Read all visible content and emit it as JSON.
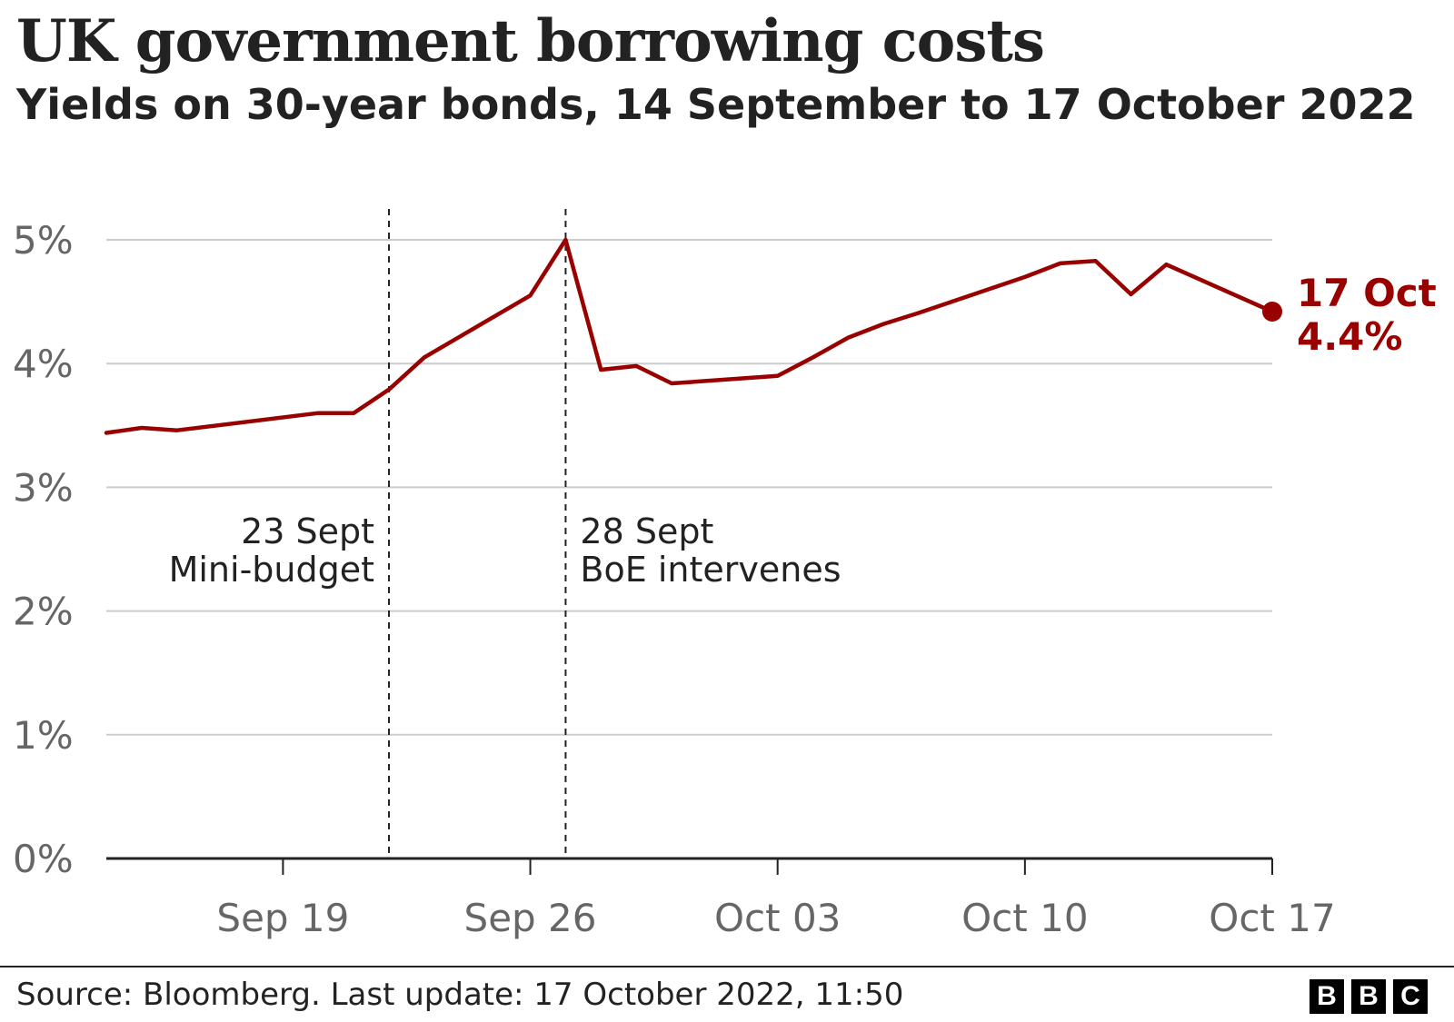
{
  "header": {
    "title": "UK government borrowing costs",
    "subtitle": "Yields on 30-year bonds, 14 September to 17 October 2022"
  },
  "footer": {
    "source": "Source: Bloomberg. Last update: 17 October 2022, 11:50",
    "logo": [
      "B",
      "B",
      "C"
    ]
  },
  "colors": {
    "series": "#990000",
    "grid": "#cccccc",
    "axis": "#222222",
    "tick_label": "#666666",
    "text": "#222222"
  },
  "chart_data": {
    "type": "line",
    "title": "UK government borrowing costs",
    "subtitle": "Yields on 30-year bonds, 14 September to 17 October 2022",
    "xlabel": "",
    "ylabel": "",
    "x_ticks": [
      {
        "date": "2022-09-19",
        "label": "Sep 19"
      },
      {
        "date": "2022-09-26",
        "label": "Sep 26"
      },
      {
        "date": "2022-10-03",
        "label": "Oct 03"
      },
      {
        "date": "2022-10-10",
        "label": "Oct 10"
      },
      {
        "date": "2022-10-17",
        "label": "Oct 17"
      }
    ],
    "x_range": [
      "2022-09-14",
      "2022-10-17"
    ],
    "y_ticks": [
      {
        "value": 0,
        "label": "0%"
      },
      {
        "value": 1,
        "label": "1%"
      },
      {
        "value": 2,
        "label": "2%"
      },
      {
        "value": 3,
        "label": "3%"
      },
      {
        "value": 4,
        "label": "4%"
      },
      {
        "value": 5,
        "label": "5%"
      }
    ],
    "ylim": [
      0,
      5
    ],
    "grid": true,
    "series": [
      {
        "color": "#990000",
        "points": [
          {
            "date": "2022-09-14",
            "value": 3.44
          },
          {
            "date": "2022-09-15",
            "value": 3.48
          },
          {
            "date": "2022-09-16",
            "value": 3.46
          },
          {
            "date": "2022-09-20",
            "value": 3.6
          },
          {
            "date": "2022-09-21",
            "value": 3.6
          },
          {
            "date": "2022-09-22",
            "value": 3.79
          },
          {
            "date": "2022-09-23",
            "value": 4.05
          },
          {
            "date": "2022-09-26",
            "value": 4.55
          },
          {
            "date": "2022-09-27",
            "value": 5.0
          },
          {
            "date": "2022-09-28",
            "value": 3.95
          },
          {
            "date": "2022-09-29",
            "value": 3.98
          },
          {
            "date": "2022-09-30",
            "value": 3.84
          },
          {
            "date": "2022-10-03",
            "value": 3.9
          },
          {
            "date": "2022-10-04",
            "value": 4.05
          },
          {
            "date": "2022-10-05",
            "value": 4.21
          },
          {
            "date": "2022-10-06",
            "value": 4.32
          },
          {
            "date": "2022-10-07",
            "value": 4.41
          },
          {
            "date": "2022-10-10",
            "value": 4.7
          },
          {
            "date": "2022-10-11",
            "value": 4.81
          },
          {
            "date": "2022-10-12",
            "value": 4.83
          },
          {
            "date": "2022-10-13",
            "value": 4.56
          },
          {
            "date": "2022-10-14",
            "value": 4.8
          },
          {
            "date": "2022-10-17",
            "value": 4.42
          }
        ]
      }
    ],
    "events": [
      {
        "date": "2022-09-22",
        "lines": [
          "23 Sept",
          "Mini-budget"
        ],
        "align": "left-of-line"
      },
      {
        "date": "2022-09-27",
        "lines": [
          "28 Sept",
          "BoE intervenes"
        ],
        "align": "right-of-line"
      }
    ],
    "end_label": {
      "lines": [
        "17 Oct",
        "4.4%"
      ]
    }
  }
}
